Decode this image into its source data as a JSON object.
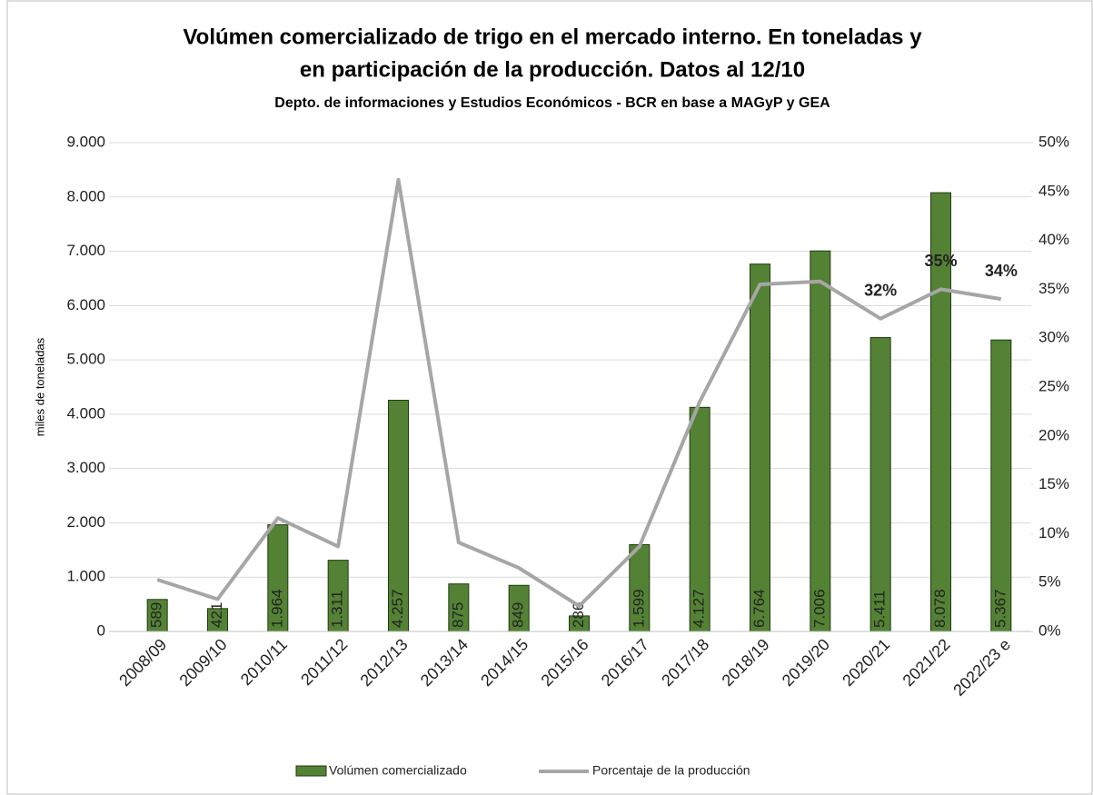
{
  "chart_data": {
    "type": "bar_line",
    "title": [
      "Volúmen comercializado de trigo en el mercado interno. En toneladas y",
      "en participación de la producción. Datos al 12/10"
    ],
    "subtitle": "Depto. de informaciones y Estudios Económicos - BCR en base a MAGyP y GEA",
    "y_label": "miles de toneladas",
    "categories": [
      "2008/09",
      "2009/10",
      "2010/11",
      "2011/12",
      "2012/13",
      "2013/14",
      "2014/15",
      "2015/16",
      "2016/17",
      "2017/18",
      "2018/19",
      "2019/20",
      "2020/21",
      "2021/22",
      "2022/23 e"
    ],
    "series": [
      {
        "name": "Volúmen comercializado",
        "color": "#548235",
        "values": [
          589,
          421,
          1964,
          1311,
          4257,
          875,
          849,
          286,
          1599,
          4127,
          6764,
          7006,
          5411,
          8078,
          5367
        ],
        "value_labels": [
          "589",
          "421",
          "1.964",
          "1.311",
          "4.257",
          "875",
          "849",
          "286",
          "1.599",
          "4.127",
          "6.764",
          "7.006",
          "5.411",
          "8.078",
          "5.367"
        ]
      },
      {
        "name": "Porcentaje de la producción",
        "color": "#a6a6a6",
        "axis": "y2",
        "values": [
          5.3,
          3.3,
          11.6,
          8.7,
          46.2,
          9.1,
          6.5,
          2.6,
          8.7,
          23.5,
          35.5,
          35.8,
          32,
          35,
          34
        ],
        "value_labels": [
          null,
          null,
          null,
          null,
          null,
          null,
          null,
          null,
          null,
          null,
          null,
          null,
          "32%",
          "35%",
          "34%"
        ]
      }
    ],
    "ylim": [
      0,
      9000
    ],
    "yticks": [
      0,
      {
        "value": 1000,
        "label": "1.000"
      },
      {
        "value": 2000,
        "label": "2.000"
      },
      {
        "value": 3000,
        "label": "3.000"
      },
      {
        "value": 4000,
        "label": "4.000"
      },
      {
        "value": 5000,
        "label": "5.000"
      },
      {
        "value": 6000,
        "label": "6.000"
      },
      {
        "value": 7000,
        "label": "7.000"
      },
      {
        "value": 8000,
        "label": "8.000"
      },
      {
        "value": 9000,
        "label": "9.000"
      }
    ],
    "y2lim": [
      0,
      50
    ],
    "y2ticks": [
      {
        "value": 0,
        "label": "0%"
      },
      {
        "value": 5,
        "label": "5%"
      },
      {
        "value": 10,
        "label": "10%"
      },
      {
        "value": 15,
        "label": "15%"
      },
      {
        "value": 20,
        "label": "20%"
      },
      {
        "value": 25,
        "label": "25%"
      },
      {
        "value": 30,
        "label": "30%"
      },
      {
        "value": 35,
        "label": "35%"
      },
      {
        "value": 40,
        "label": "40%"
      },
      {
        "value": 45,
        "label": "45%"
      },
      {
        "value": 50,
        "label": "50%"
      }
    ],
    "grid": true
  }
}
